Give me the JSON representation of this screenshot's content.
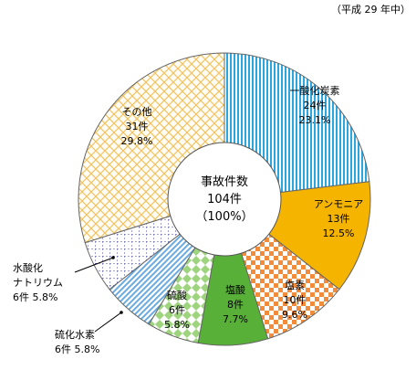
{
  "note": "（平成 29 年中）",
  "chart_data": {
    "type": "pie",
    "center_label": {
      "line1": "事故件数",
      "line2": "104件",
      "line3": "（100%）"
    },
    "total": 104,
    "slices": [
      {
        "name": "一酸化炭素",
        "count_label": "24件",
        "pct_label": "23.1%",
        "value": 24,
        "color": "#29a7e1",
        "pattern": "vlines"
      },
      {
        "name": "アンモニア",
        "count_label": "13件",
        "pct_label": "12.5%",
        "value": 13,
        "color": "#f5b400",
        "pattern": "solid"
      },
      {
        "name": "塩素",
        "count_label": "10件",
        "pct_label": "9.6%",
        "value": 10,
        "color": "#f08c3c",
        "pattern": "checker"
      },
      {
        "name": "塩酸",
        "count_label": "8件",
        "pct_label": "7.7%",
        "value": 8,
        "color": "#58b038",
        "pattern": "solid"
      },
      {
        "name": "硫酸",
        "count_label": "6件",
        "pct_label": "5.8%",
        "value": 6,
        "color": "#8cc86e",
        "pattern": "diamond"
      },
      {
        "name": "硫化水素",
        "count_label": "6件  5.8%",
        "pct_label": "",
        "value": 6,
        "color": "#5aa0dc",
        "pattern": "diagonal"
      },
      {
        "name": "水酸化\nナトリウム",
        "count_label": "6件  5.8%",
        "pct_label": "",
        "value": 6,
        "color": "#4646a0",
        "pattern": "dots"
      },
      {
        "name": "その他",
        "count_label": "31件",
        "pct_label": "29.8%",
        "value": 31,
        "color": "#f2c260",
        "pattern": "crosshatch"
      }
    ]
  }
}
